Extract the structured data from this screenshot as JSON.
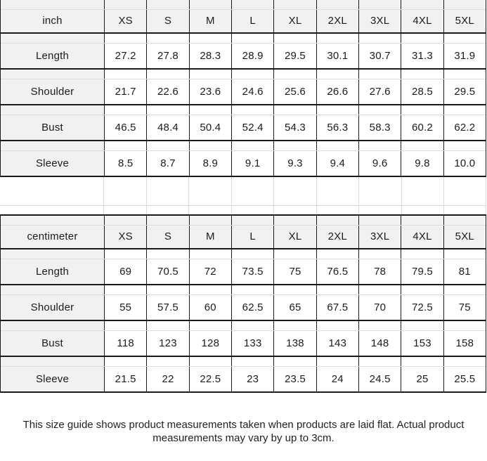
{
  "size_guide": {
    "tables": [
      {
        "unit_label": "inch",
        "size_headers": [
          "XS",
          "S",
          "M",
          "L",
          "XL",
          "2XL",
          "3XL",
          "4XL",
          "5XL"
        ],
        "rows": [
          {
            "label": "Length",
            "values": [
              "27.2",
              "27.8",
              "28.3",
              "28.9",
              "29.5",
              "30.1",
              "30.7",
              "31.3",
              "31.9"
            ]
          },
          {
            "label": "Shoulder",
            "values": [
              "21.7",
              "22.6",
              "23.6",
              "24.6",
              "25.6",
              "26.6",
              "27.6",
              "28.5",
              "29.5"
            ]
          },
          {
            "label": "Bust",
            "values": [
              "46.5",
              "48.4",
              "50.4",
              "52.4",
              "54.3",
              "56.3",
              "58.3",
              "60.2",
              "62.2"
            ]
          },
          {
            "label": "Sleeve",
            "values": [
              "8.5",
              "8.7",
              "8.9",
              "9.1",
              "9.3",
              "9.4",
              "9.6",
              "9.8",
              "10.0"
            ]
          }
        ]
      },
      {
        "unit_label": "centimeter",
        "size_headers": [
          "XS",
          "S",
          "M",
          "L",
          "XL",
          "2XL",
          "3XL",
          "4XL",
          "5XL"
        ],
        "rows": [
          {
            "label": "Length",
            "values": [
              "69",
              "70.5",
              "72",
              "73.5",
              "75",
              "76.5",
              "78",
              "79.5",
              "81"
            ]
          },
          {
            "label": "Shoulder",
            "values": [
              "55",
              "57.5",
              "60",
              "62.5",
              "65",
              "67.5",
              "70",
              "72.5",
              "75"
            ]
          },
          {
            "label": "Bust",
            "values": [
              "118",
              "123",
              "128",
              "133",
              "138",
              "143",
              "148",
              "153",
              "158"
            ]
          },
          {
            "label": "Sleeve",
            "values": [
              "21.5",
              "22",
              "22.5",
              "23",
              "23.5",
              "24",
              "24.5",
              "25",
              "25.5"
            ]
          }
        ]
      }
    ],
    "footnote": "This size guide shows product measurements taken when products are laid flat. Actual product measurements may vary by up to 3cm.",
    "colors": {
      "header_bg": "#f1f1f1",
      "label_bg": "#f1f1f1",
      "grid_strong": "#1a1a1a",
      "grid_faint": "#dcdcdc",
      "text": "#1b1b1b"
    }
  }
}
